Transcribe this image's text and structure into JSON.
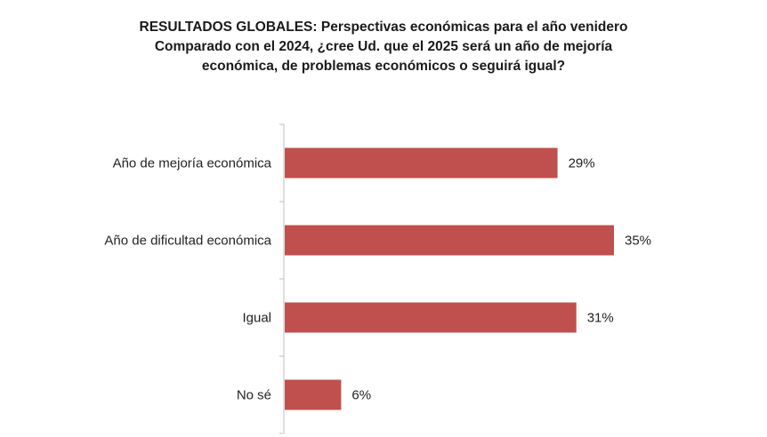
{
  "chart_data": {
    "type": "bar",
    "orientation": "horizontal",
    "title_lines": [
      "RESULTADOS GLOBALES: Perspectivas económicas para el año venidero",
      "Comparado con el 2024, ¿cree Ud. que el 2025 será un año de mejoría",
      "económica, de problemas económicos o seguirá igual?"
    ],
    "categories": [
      "Año de mejoría económica",
      "Año de dificultad económica",
      "Igual",
      "No sé"
    ],
    "values": [
      29,
      35,
      31,
      6
    ],
    "value_labels": [
      "29%",
      "35%",
      "31%",
      "6%"
    ],
    "unit": "%",
    "xlim": [
      0,
      35
    ],
    "grid": false,
    "legend": "none",
    "bar_color": "#c0504d",
    "axis_color": "#bfbfbf"
  }
}
